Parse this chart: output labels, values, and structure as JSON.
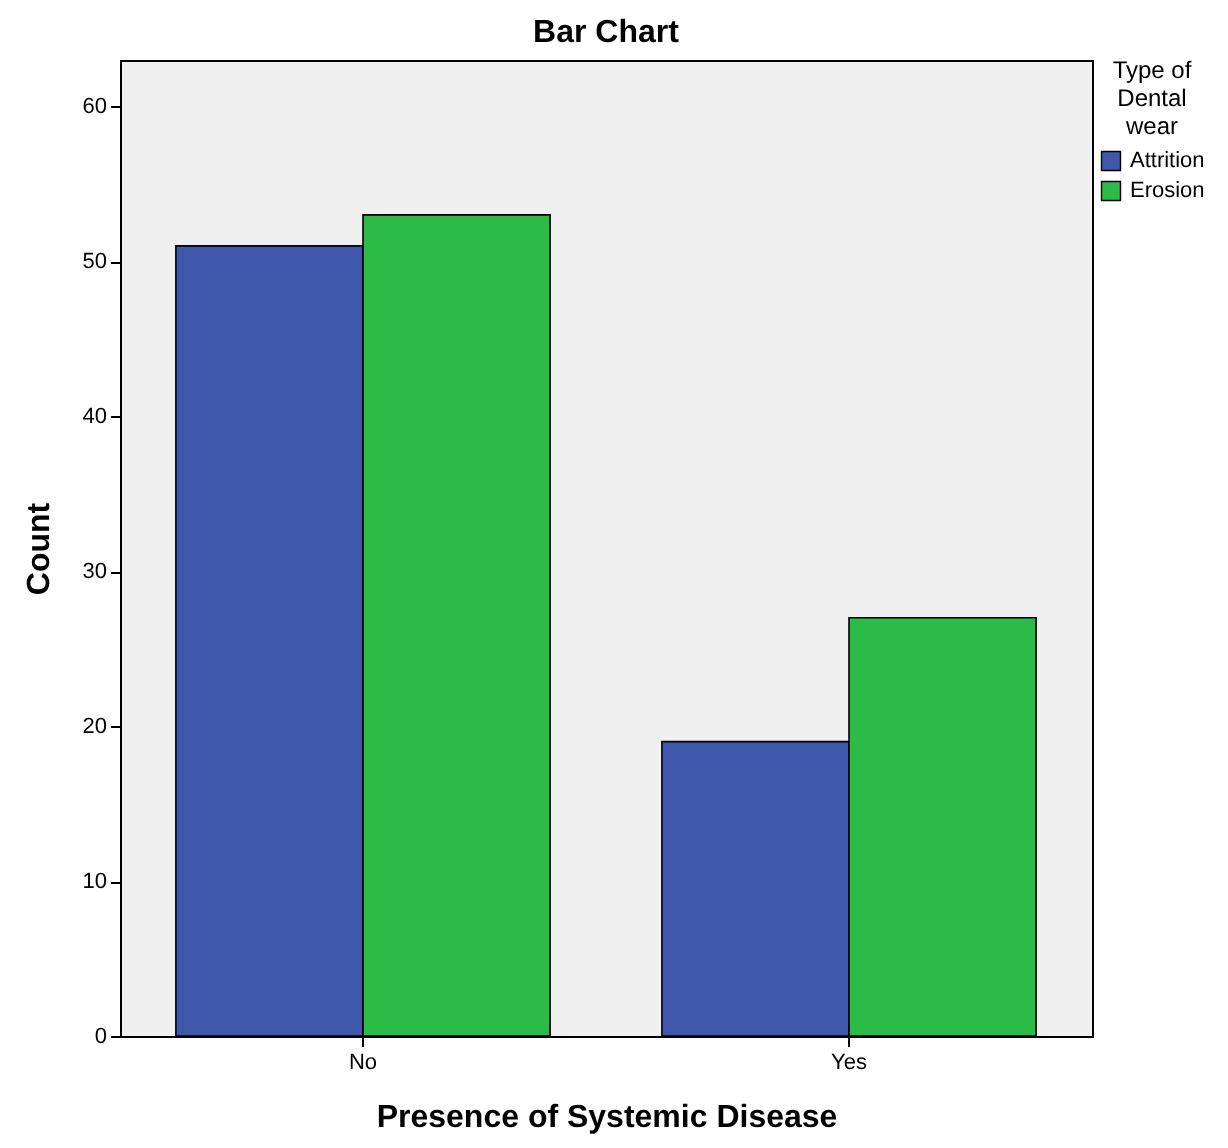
{
  "chart_data": {
    "type": "bar",
    "title": "Bar Chart",
    "xlabel": "Presence of Systemic Disease",
    "ylabel": "Count",
    "legend_title": "Type of Dental wear",
    "categories": [
      "No",
      "Yes"
    ],
    "series": [
      {
        "name": "Attrition",
        "color": "#3f57ab",
        "values": [
          51,
          19
        ]
      },
      {
        "name": "Erosion",
        "color": "#2dbb47",
        "values": [
          53,
          27
        ]
      }
    ],
    "ylim": [
      0,
      63
    ],
    "yticks": [
      0,
      10,
      20,
      30,
      40,
      50,
      60
    ],
    "grid": false,
    "legend": "top right"
  }
}
